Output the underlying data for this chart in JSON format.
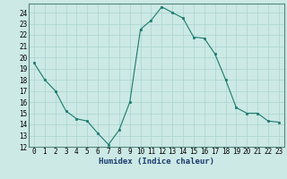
{
  "x": [
    0,
    1,
    2,
    3,
    4,
    5,
    6,
    7,
    8,
    9,
    10,
    11,
    12,
    13,
    14,
    15,
    16,
    17,
    18,
    19,
    20,
    21,
    22,
    23
  ],
  "y": [
    19.5,
    18.0,
    17.0,
    15.2,
    14.5,
    14.3,
    13.2,
    12.2,
    13.5,
    16.0,
    22.5,
    23.3,
    24.5,
    24.0,
    23.5,
    21.8,
    21.7,
    20.3,
    18.0,
    15.5,
    15.0,
    15.0,
    14.3,
    14.2
  ],
  "line_color": "#1a7a6e",
  "marker": "s",
  "marker_size": 2,
  "bg_color": "#cce9e5",
  "grid_color": "#aad4cf",
  "xlabel": "Humidex (Indice chaleur)",
  "xlim": [
    -0.5,
    23.5
  ],
  "ylim": [
    12,
    24.8
  ],
  "yticks": [
    12,
    13,
    14,
    15,
    16,
    17,
    18,
    19,
    20,
    21,
    22,
    23,
    24
  ],
  "xticks": [
    0,
    1,
    2,
    3,
    4,
    5,
    6,
    7,
    8,
    9,
    10,
    11,
    12,
    13,
    14,
    15,
    16,
    17,
    18,
    19,
    20,
    21,
    22,
    23
  ],
  "xlabel_fontsize": 6.5,
  "tick_fontsize": 5.5
}
